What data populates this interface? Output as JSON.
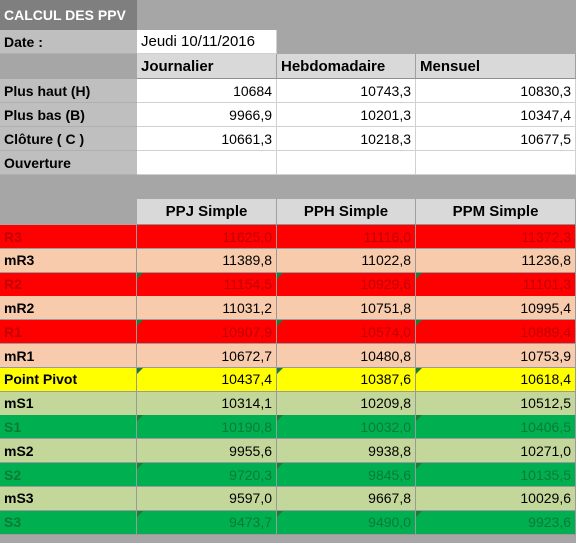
{
  "title": "CALCUL DES PPV",
  "date_label": "Date :",
  "date_value": "Jeudi 10/11/2016",
  "periods": [
    "Journalier",
    "Hebdomadaire",
    "Mensuel"
  ],
  "inputs": [
    {
      "label": "Plus haut (H)",
      "values": [
        "10684",
        "10743,3",
        "10830,3"
      ]
    },
    {
      "label": "Plus bas (B)",
      "values": [
        "9966,9",
        "10201,3",
        "10347,4"
      ]
    },
    {
      "label": "Clôture ( C )",
      "values": [
        "10661,3",
        "10218,3",
        "10677,5"
      ]
    },
    {
      "label": "Ouverture",
      "values": [
        "",
        "",
        ""
      ]
    }
  ],
  "pivot_headers": [
    "PPJ Simple",
    "PPH Simple",
    "PPM Simple"
  ],
  "colors": {
    "red": "#ff0000",
    "red_text": "#c00000",
    "peach": "#f8cbad",
    "yellow": "#ffff00",
    "lightgreen": "#c4d79b",
    "green": "#00b050",
    "green_text": "#0a7a36"
  },
  "pivot_rows": [
    {
      "label": "R3",
      "values": [
        "11625,0",
        "11116,0",
        "11372,3"
      ],
      "style": "red",
      "flag": false
    },
    {
      "label": "mR3",
      "values": [
        "11389,8",
        "11022,8",
        "11236,8"
      ],
      "style": "peach",
      "flag": false
    },
    {
      "label": "R2",
      "values": [
        "11154,5",
        "10929,6",
        "11101,3"
      ],
      "style": "red",
      "flag": true
    },
    {
      "label": "mR2",
      "values": [
        "11031,2",
        "10751,8",
        "10995,4"
      ],
      "style": "peach",
      "flag": false
    },
    {
      "label": "R1",
      "values": [
        "10907,9",
        "10574,0",
        "10889,4"
      ],
      "style": "red",
      "flag": true
    },
    {
      "label": "mR1",
      "values": [
        "10672,7",
        "10480,8",
        "10753,9"
      ],
      "style": "peach",
      "flag": false
    },
    {
      "label": "Point Pivot",
      "values": [
        "10437,4",
        "10387,6",
        "10618,4"
      ],
      "style": "yellow",
      "flag": true
    },
    {
      "label": "mS1",
      "values": [
        "10314,1",
        "10209,8",
        "10512,5"
      ],
      "style": "lightgreen",
      "flag": false
    },
    {
      "label": "S1",
      "values": [
        "10190,8",
        "10032,0",
        "10406,5"
      ],
      "style": "green",
      "flag": true
    },
    {
      "label": "mS2",
      "values": [
        "9955,6",
        "9938,8",
        "10271,0"
      ],
      "style": "lightgreen",
      "flag": false
    },
    {
      "label": "S2",
      "values": [
        "9720,3",
        "9845,6",
        "10135,5"
      ],
      "style": "green",
      "flag": true
    },
    {
      "label": "mS3",
      "values": [
        "9597,0",
        "9667,8",
        "10029,6"
      ],
      "style": "lightgreen",
      "flag": false
    },
    {
      "label": "S3",
      "values": [
        "9473,7",
        "9490,0",
        "9923,6"
      ],
      "style": "green",
      "flag": true
    }
  ]
}
